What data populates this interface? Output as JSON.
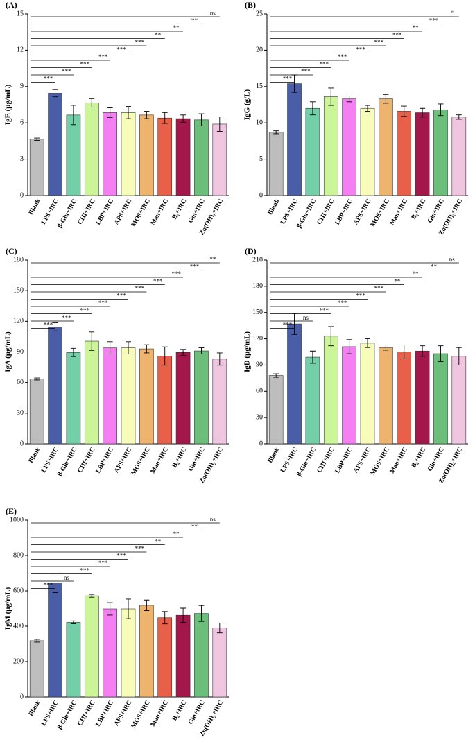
{
  "chart_data": [
    {
      "type": "bar",
      "panel": "(A)",
      "ylabel": "IgE (μg/mL)",
      "categories": [
        "Blank",
        "LPS+IRC",
        "β-Glu+IRC",
        "CHI+IRC",
        "LBP+IRC",
        "APS+IRC",
        "MOS+IRC",
        "Man+IRC",
        "B₂+IRC",
        "Gin+IRC",
        "Zn(OH)₂+IRC"
      ],
      "values": [
        4.65,
        8.45,
        6.65,
        7.65,
        6.85,
        6.85,
        6.65,
        6.4,
        6.35,
        6.25,
        5.9
      ],
      "errors": [
        0.1,
        0.3,
        0.8,
        0.35,
        0.4,
        0.5,
        0.3,
        0.45,
        0.3,
        0.5,
        0.6
      ],
      "colors": [
        "#bdbdbd",
        "#4a5ea8",
        "#72cfa8",
        "#ccf598",
        "#f57ef2",
        "#f7fcb8",
        "#eeb46e",
        "#e9604a",
        "#a3174a",
        "#6cbf7a",
        "#f0c5e0"
      ],
      "ylim": [
        0,
        15
      ],
      "yticks": [
        0,
        3,
        6,
        9,
        12,
        15
      ],
      "significance": [
        null,
        "***",
        "***",
        "***",
        "***",
        "***",
        "***",
        "**",
        "**",
        "**",
        "ns"
      ]
    },
    {
      "type": "bar",
      "panel": "(B)",
      "ylabel": "IgG (g/L)",
      "categories": [
        "Blank",
        "LPS+IRC",
        "β-Glu+IRC",
        "CHI+IRC",
        "LBP+IRC",
        "APS+IRC",
        "MOS+IRC",
        "Man+IRC",
        "B₂+IRC",
        "Gin+IRC",
        "Zn(OH)₂+IRC"
      ],
      "values": [
        8.7,
        15.4,
        12.0,
        13.6,
        13.3,
        12.0,
        13.3,
        11.6,
        11.4,
        11.8,
        10.8
      ],
      "errors": [
        0.2,
        1.2,
        0.9,
        1.2,
        0.4,
        0.4,
        0.6,
        0.7,
        0.6,
        0.8,
        0.3
      ],
      "colors": [
        "#bdbdbd",
        "#4a5ea8",
        "#72cfa8",
        "#ccf598",
        "#f57ef2",
        "#f7fcb8",
        "#eeb46e",
        "#e9604a",
        "#a3174a",
        "#6cbf7a",
        "#f0c5e0"
      ],
      "ylim": [
        0,
        25
      ],
      "yticks": [
        0,
        5,
        10,
        15,
        20,
        25
      ],
      "significance": [
        null,
        "***",
        "***",
        "***",
        "***",
        "***",
        "***",
        "***",
        "**",
        "***",
        "*"
      ]
    },
    {
      "type": "bar",
      "panel": "(C)",
      "ylabel": "IgA (μg/mL)",
      "categories": [
        "Blank",
        "LPS+IRC",
        "β-Glu+IRC",
        "CHI+IRC",
        "LBP+IRC",
        "APS+IRC",
        "MOS+IRC",
        "Man+IRC",
        "B₂+IRC",
        "Gin+IRC",
        "Zn(OH)₂+IRC"
      ],
      "values": [
        63.5,
        114.5,
        89.5,
        100.5,
        94,
        94,
        93,
        86,
        89.5,
        91,
        83
      ],
      "errors": [
        1,
        4,
        4,
        9,
        6,
        6,
        4,
        9,
        3,
        3,
        6
      ],
      "colors": [
        "#bdbdbd",
        "#4a5ea8",
        "#72cfa8",
        "#ccf598",
        "#f57ef2",
        "#f7fcb8",
        "#eeb46e",
        "#e9604a",
        "#a3174a",
        "#6cbf7a",
        "#f0c5e0"
      ],
      "ylim": [
        0,
        180
      ],
      "yticks": [
        0,
        30,
        60,
        90,
        120,
        150,
        180
      ],
      "significance": [
        null,
        "***",
        "***",
        "***",
        "***",
        "***",
        "***",
        "***",
        "***",
        "***",
        "**"
      ]
    },
    {
      "type": "bar",
      "panel": "(D)",
      "ylabel": "IgD (μg/mL)",
      "categories": [
        "Blank",
        "LPS+IRC",
        "β-Glu+IRC",
        "CHI+IRC",
        "LBP+IRC",
        "APS+IRC",
        "MOS+IRC",
        "Man+IRC",
        "B₂+IRC",
        "Gin+IRC",
        "Zn(OH)₂+IRC"
      ],
      "values": [
        78,
        137,
        99,
        123,
        111,
        115,
        110,
        105,
        106,
        103,
        100
      ],
      "errors": [
        2,
        12,
        7,
        11,
        8,
        5,
        3,
        8,
        6,
        9,
        10
      ],
      "colors": [
        "#bdbdbd",
        "#4a5ea8",
        "#72cfa8",
        "#ccf598",
        "#f57ef2",
        "#f7fcb8",
        "#eeb46e",
        "#e9604a",
        "#a3174a",
        "#6cbf7a",
        "#f0c5e0"
      ],
      "ylim": [
        0,
        210
      ],
      "yticks": [
        0,
        30,
        60,
        90,
        120,
        150,
        180,
        210
      ],
      "significance": [
        null,
        "***",
        "ns",
        "***",
        "***",
        "***",
        "***",
        "**",
        "**",
        "**",
        "ns"
      ]
    },
    {
      "type": "bar",
      "panel": "(E)",
      "ylabel": "IgM (μg/mL)",
      "categories": [
        "Blank",
        "LPS+IRC",
        "β-Glu+IRC",
        "CHI+IRC",
        "LBP+IRC",
        "APS+IRC",
        "MOS+IRC",
        "Man+IRC",
        "B₂+IRC",
        "Gin+IRC",
        "Zn(OH)₂+IRC"
      ],
      "values": [
        318,
        645,
        422,
        572,
        498,
        498,
        518,
        448,
        462,
        472,
        390
      ],
      "errors": [
        8,
        55,
        8,
        8,
        35,
        55,
        30,
        35,
        40,
        45,
        28
      ],
      "colors": [
        "#bdbdbd",
        "#4a5ea8",
        "#72cfa8",
        "#ccf598",
        "#f57ef2",
        "#f7fcb8",
        "#eeb46e",
        "#e9604a",
        "#a3174a",
        "#6cbf7a",
        "#f0c5e0"
      ],
      "ylim": [
        0,
        1000
      ],
      "yticks": [
        0,
        200,
        400,
        600,
        800,
        1000
      ],
      "significance": [
        null,
        "***",
        "ns",
        "***",
        "***",
        "***",
        "***",
        "**",
        "**",
        "**",
        "ns"
      ]
    }
  ]
}
